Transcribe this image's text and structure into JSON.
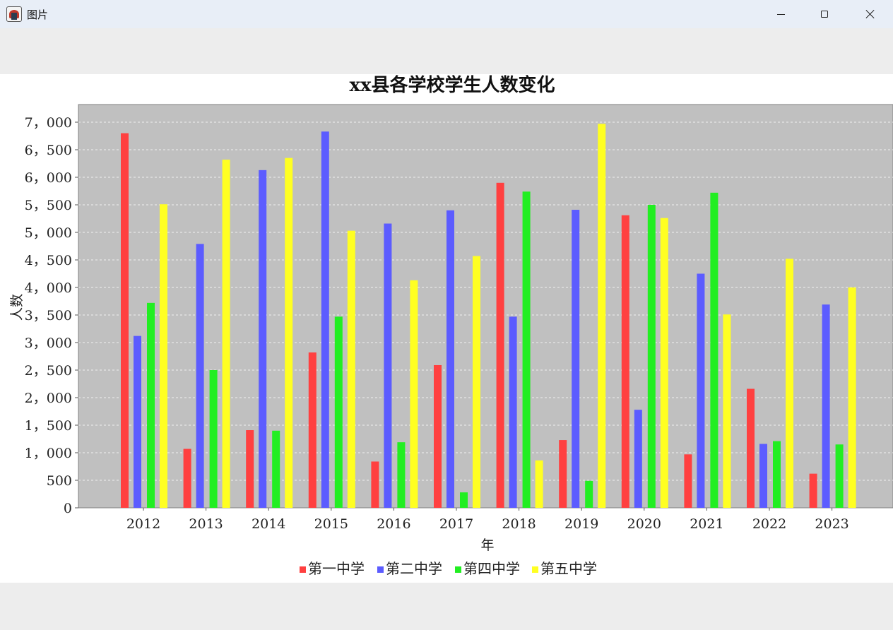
{
  "window": {
    "title": "图片"
  },
  "chart_data": {
    "type": "bar",
    "title": "xx县各学校学生人数变化",
    "xlabel": "年",
    "ylabel": "人数",
    "ylim": [
      0,
      7000
    ],
    "yticks": [
      0,
      500,
      1000,
      1500,
      2000,
      2500,
      3000,
      3500,
      4000,
      4500,
      5000,
      5500,
      6000,
      6500,
      7000
    ],
    "ytick_labels": [
      "0",
      "500",
      "1，000",
      "1，500",
      "2，000",
      "2，500",
      "3，000",
      "3，500",
      "4，000",
      "4，500",
      "5，000",
      "5，500",
      "6，000",
      "6，500",
      "7，000"
    ],
    "grid": true,
    "legend_position": "bottom",
    "categories": [
      "2012",
      "2013",
      "2014",
      "2015",
      "2016",
      "2017",
      "2018",
      "2019",
      "2020",
      "2021",
      "2022",
      "2023"
    ],
    "series": [
      {
        "name": "第一中学",
        "color": "#ff4040",
        "values": [
          6800,
          1070,
          1410,
          2820,
          840,
          2590,
          5900,
          1230,
          5310,
          970,
          2160,
          620
        ]
      },
      {
        "name": "第二中学",
        "color": "#5c5cff",
        "values": [
          3120,
          4790,
          6130,
          6830,
          5160,
          5400,
          3470,
          5410,
          1780,
          4250,
          1160,
          3690
        ]
      },
      {
        "name": "第四中学",
        "color": "#22ee22",
        "values": [
          3720,
          2500,
          1400,
          3470,
          1190,
          280,
          5740,
          490,
          5500,
          5720,
          1210,
          1150
        ]
      },
      {
        "name": "第五中学",
        "color": "#ffff22",
        "values": [
          5510,
          6320,
          6350,
          5030,
          4130,
          4570,
          860,
          6970,
          5260,
          3510,
          4520,
          4000
        ]
      }
    ],
    "plot_background": "#c0c0c0"
  }
}
